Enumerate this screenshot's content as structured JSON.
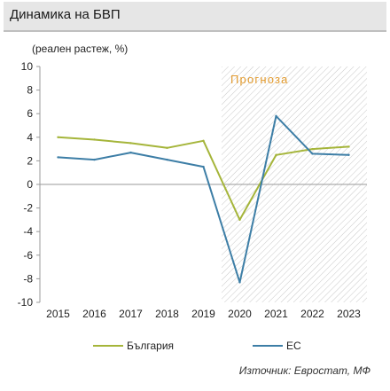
{
  "title": "Динамика на БВП",
  "ylabel": "(реален растеж, %)",
  "forecast_label": "Прогноза",
  "source": "Източник: Евростат, МФ",
  "colors": {
    "bulgaria": "#a5b53a",
    "eu": "#3d7ea6",
    "forecast": "#e29a2d",
    "title_bg": "#e6e6e6"
  },
  "chart_data": {
    "type": "line",
    "title": "Динамика на БВП",
    "ylabel": "(реален растеж, %)",
    "xlabel": "",
    "x": [
      "2015",
      "2016",
      "2017",
      "2018",
      "2019",
      "2020",
      "2021",
      "2022",
      "2023"
    ],
    "ylim": [
      -10,
      10
    ],
    "yticks": [
      "10",
      "8",
      "6",
      "4",
      "2",
      "0",
      "-2",
      "-4",
      "-6",
      "-8",
      "-10"
    ],
    "forecast_from": "2020",
    "legend_position": "bottom",
    "grid": false,
    "series": [
      {
        "name": "България",
        "values": [
          4.0,
          3.8,
          3.5,
          3.1,
          3.7,
          -3.0,
          2.5,
          3.0,
          3.2
        ]
      },
      {
        "name": "ЕС",
        "values": [
          2.3,
          2.1,
          2.7,
          2.1,
          1.5,
          -8.3,
          5.8,
          2.6,
          2.5
        ]
      }
    ]
  }
}
